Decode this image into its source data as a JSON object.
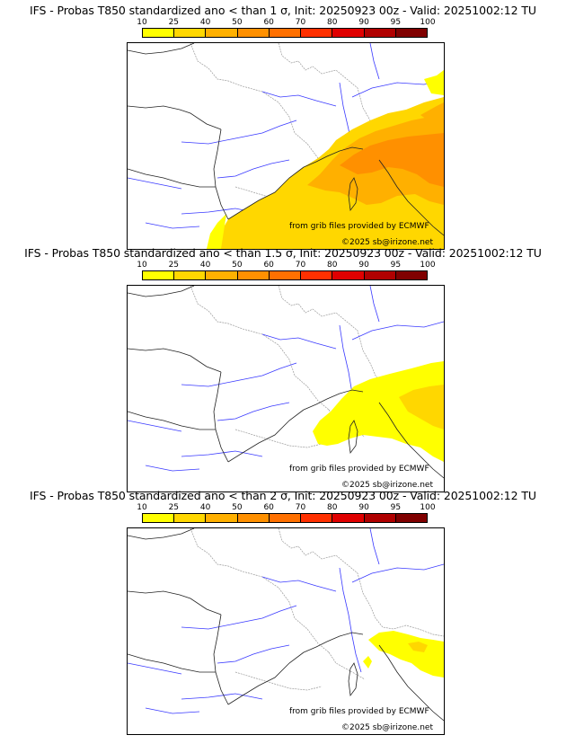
{
  "colors": {
    "scale": [
      "#ffff00",
      "#ffd700",
      "#ffb000",
      "#ff9000",
      "#ff7000",
      "#ff3000",
      "#e00000",
      "#b00000",
      "#800000",
      "#500000"
    ],
    "river": "#3a3aff",
    "border": "#999999"
  },
  "colorbar": {
    "ticks": [
      "10",
      "25",
      "40",
      "50",
      "60",
      "70",
      "80",
      "90",
      "95",
      "100"
    ]
  },
  "panels": [
    {
      "title": "IFS - Probas T850  standardized ano < than 1 σ, Init: 20250923 00z - Valid: 20251002:12 TU",
      "credit": "from grib files provided by ECMWF",
      "copyright": "©2025 sb@irizone.net"
    },
    {
      "title": "IFS - Probas T850  standardized ano < than 1.5 σ, Init: 20250923 00z - Valid: 20251002:12 TU",
      "credit": "from grib files provided by ECMWF",
      "copyright": "©2025 sb@irizone.net"
    },
    {
      "title": "IFS - Probas T850  standardized ano < than 2 σ, Init: 20250923 00z - Valid: 20251002:12 TU",
      "credit": "from grib files provided by ECMWF",
      "copyright": "©2025 sb@irizone.net"
    }
  ]
}
